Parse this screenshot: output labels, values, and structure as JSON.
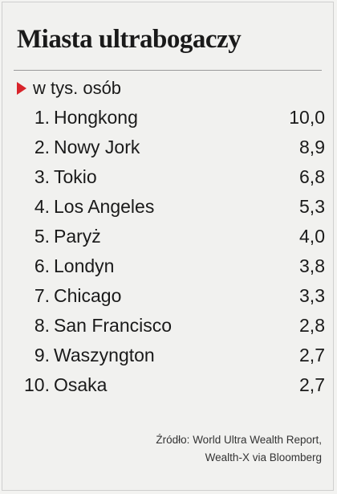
{
  "header": {
    "title": "Miasta ultrabogaczy",
    "subtitle": "w tys. osób"
  },
  "table": {
    "rows": [
      [
        "1.",
        "Hongkong",
        "10,0"
      ],
      [
        "2.",
        "Nowy Jork",
        "8,9"
      ],
      [
        "3.",
        "Tokio",
        "6,8"
      ],
      [
        "4.",
        "Los Angeles",
        "5,3"
      ],
      [
        "5.",
        "Paryż",
        "4,0"
      ],
      [
        "6.",
        "Londyn",
        "3,8"
      ],
      [
        "7.",
        "Chicago",
        "3,3"
      ],
      [
        "8.",
        "San Francisco",
        "2,8"
      ],
      [
        "9.",
        "Waszyngton",
        "2,7"
      ],
      [
        "10.",
        "Osaka",
        "2,7"
      ]
    ]
  },
  "footer": {
    "source": [
      "Źródło: World Ultra Wealth Report,",
      "Wealth-X via Bloomberg"
    ]
  }
}
